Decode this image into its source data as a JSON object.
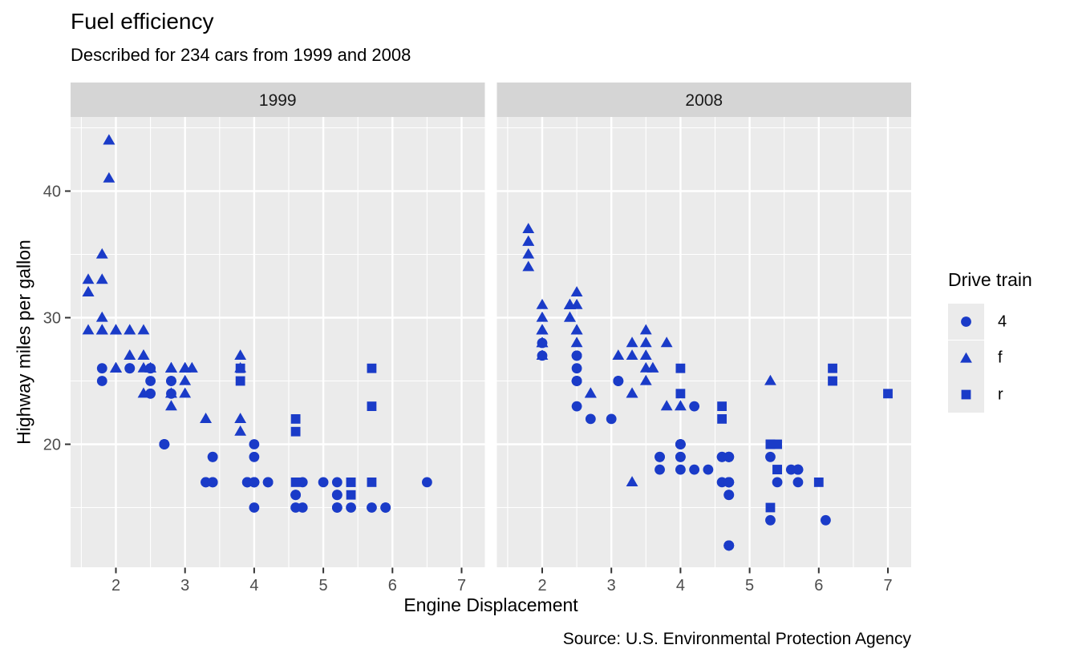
{
  "chart_data": {
    "type": "scatter",
    "title": "Fuel efficiency",
    "subtitle": "Described for 234 cars from 1999 and 2008",
    "xlabel": "Engine Displacement",
    "ylabel": "Highway miles per gallon",
    "caption": "Source: U.S. Environmental Protection Agency",
    "x_ticks": [
      2,
      3,
      4,
      5,
      6,
      7
    ],
    "x_minor": [
      1.5,
      2.5,
      3.5,
      4.5,
      5.5,
      6.5
    ],
    "y_ticks": [
      20,
      30,
      40
    ],
    "y_minor": [
      15,
      25,
      35,
      45
    ],
    "xlim": [
      1.33,
      7.33
    ],
    "ylim": [
      10.4,
      45.8
    ],
    "grid": "on",
    "legend_position": "right",
    "legend": {
      "title": "Drive train",
      "entries": [
        {
          "label": "4",
          "shape": "circle"
        },
        {
          "label": "f",
          "shape": "triangle"
        },
        {
          "label": "r",
          "shape": "square"
        }
      ]
    },
    "colors": {
      "point": "#1A3BC8",
      "panel_bg": "#EBEBEB",
      "strip_bg": "#D5D5D5",
      "grid": "#FFFFFF",
      "tick": "#333333",
      "tick_label": "#4D4D4D",
      "strip_text": "#1A1A1A"
    },
    "facets": [
      {
        "label": "1999",
        "series": [
          {
            "name": "4",
            "shape": "circle",
            "points": [
              [
                1.8,
                26
              ],
              [
                1.8,
                25
              ],
              [
                2.8,
                25
              ],
              [
                2.8,
                25
              ],
              [
                2.8,
                24
              ],
              [
                5.7,
                15
              ],
              [
                6.5,
                17
              ],
              [
                3.9,
                17
              ],
              [
                3.9,
                17
              ],
              [
                5.2,
                17
              ],
              [
                5.2,
                15
              ],
              [
                3.9,
                17
              ],
              [
                5.2,
                16
              ],
              [
                5.9,
                15
              ],
              [
                5.2,
                15
              ],
              [
                5.2,
                16
              ],
              [
                5.9,
                15
              ],
              [
                4.0,
                17
              ],
              [
                4.0,
                19
              ],
              [
                4.0,
                17
              ],
              [
                4.0,
                17
              ],
              [
                4.2,
                17
              ],
              [
                4.2,
                17
              ],
              [
                4.6,
                16
              ],
              [
                4.6,
                16
              ],
              [
                5.4,
                15
              ],
              [
                4.0,
                20
              ],
              [
                4.7,
                17
              ],
              [
                4.0,
                15
              ],
              [
                4.6,
                15
              ],
              [
                4.0,
                17
              ],
              [
                5.0,
                17
              ],
              [
                3.3,
                17
              ],
              [
                3.3,
                17
              ],
              [
                2.5,
                25
              ],
              [
                2.5,
                24
              ],
              [
                2.2,
                26
              ],
              [
                2.2,
                26
              ],
              [
                2.5,
                26
              ],
              [
                2.5,
                26
              ],
              [
                2.7,
                20
              ],
              [
                2.7,
                20
              ],
              [
                3.4,
                19
              ],
              [
                3.4,
                17
              ],
              [
                4.7,
                15
              ],
              [
                2.7,
                20
              ],
              [
                2.7,
                20
              ],
              [
                3.4,
                17
              ],
              [
                3.4,
                19
              ]
            ]
          },
          {
            "name": "f",
            "shape": "triangle",
            "points": [
              [
                1.8,
                29
              ],
              [
                1.8,
                29
              ],
              [
                2.8,
                26
              ],
              [
                2.8,
                26
              ],
              [
                2.4,
                27
              ],
              [
                3.1,
                26
              ],
              [
                2.4,
                24
              ],
              [
                3.0,
                24
              ],
              [
                3.3,
                22
              ],
              [
                3.3,
                22
              ],
              [
                3.8,
                22
              ],
              [
                3.8,
                21
              ],
              [
                1.6,
                33
              ],
              [
                1.6,
                32
              ],
              [
                1.6,
                32
              ],
              [
                1.6,
                29
              ],
              [
                1.6,
                32
              ],
              [
                2.4,
                26
              ],
              [
                2.4,
                27
              ],
              [
                2.5,
                26
              ],
              [
                2.5,
                26
              ],
              [
                2.0,
                26
              ],
              [
                2.0,
                29
              ],
              [
                2.4,
                29
              ],
              [
                2.4,
                27
              ],
              [
                3.0,
                26
              ],
              [
                3.0,
                25
              ],
              [
                3.1,
                26
              ],
              [
                3.8,
                26
              ],
              [
                3.8,
                27
              ],
              [
                2.2,
                29
              ],
              [
                2.2,
                27
              ],
              [
                3.0,
                26
              ],
              [
                3.0,
                26
              ],
              [
                2.2,
                27
              ],
              [
                2.2,
                29
              ],
              [
                3.0,
                26
              ],
              [
                1.8,
                30
              ],
              [
                1.8,
                33
              ],
              [
                1.8,
                35
              ],
              [
                2.0,
                29
              ],
              [
                2.0,
                26
              ],
              [
                2.8,
                24
              ],
              [
                1.9,
                44
              ],
              [
                2.0,
                29
              ],
              [
                2.0,
                26
              ],
              [
                2.8,
                23
              ],
              [
                2.8,
                24
              ],
              [
                1.9,
                44
              ],
              [
                1.9,
                41
              ],
              [
                2.0,
                29
              ],
              [
                2.0,
                26
              ],
              [
                1.8,
                29
              ],
              [
                1.8,
                29
              ],
              [
                2.8,
                26
              ],
              [
                2.8,
                26
              ],
              [
                2.0,
                29
              ]
            ]
          },
          {
            "name": "r",
            "shape": "square",
            "points": [
              [
                5.7,
                17
              ],
              [
                5.7,
                26
              ],
              [
                5.7,
                23
              ],
              [
                4.6,
                17
              ],
              [
                5.4,
                17
              ],
              [
                3.8,
                26
              ],
              [
                3.8,
                25
              ],
              [
                4.6,
                21
              ],
              [
                4.6,
                22
              ],
              [
                5.4,
                17
              ],
              [
                5.4,
                16
              ]
            ]
          }
        ]
      },
      {
        "label": "2008",
        "series": [
          {
            "name": "4",
            "shape": "circle",
            "points": [
              [
                2.0,
                28
              ],
              [
                2.0,
                27
              ],
              [
                3.1,
                25
              ],
              [
                3.1,
                25
              ],
              [
                3.1,
                25
              ],
              [
                4.2,
                23
              ],
              [
                5.3,
                19
              ],
              [
                5.3,
                14
              ],
              [
                3.7,
                19
              ],
              [
                3.7,
                18
              ],
              [
                4.7,
                19
              ],
              [
                4.7,
                19
              ],
              [
                4.7,
                12
              ],
              [
                4.7,
                17
              ],
              [
                4.7,
                12
              ],
              [
                4.7,
                17
              ],
              [
                5.7,
                18
              ],
              [
                4.7,
                16
              ],
              [
                4.7,
                12
              ],
              [
                4.7,
                17
              ],
              [
                4.7,
                17
              ],
              [
                4.7,
                16
              ],
              [
                5.7,
                17
              ],
              [
                4.0,
                19
              ],
              [
                4.6,
                19
              ],
              [
                4.6,
                17
              ],
              [
                5.4,
                17
              ],
              [
                3.0,
                22
              ],
              [
                3.7,
                19
              ],
              [
                4.7,
                12
              ],
              [
                4.7,
                19
              ],
              [
                5.7,
                18
              ],
              [
                6.1,
                14
              ],
              [
                4.2,
                18
              ],
              [
                4.4,
                18
              ],
              [
                4.0,
                19
              ],
              [
                4.6,
                19
              ],
              [
                4.0,
                20
              ],
              [
                5.6,
                18
              ],
              [
                2.5,
                27
              ],
              [
                2.5,
                25
              ],
              [
                2.5,
                26
              ],
              [
                2.5,
                23
              ],
              [
                2.5,
                25
              ],
              [
                2.5,
                27
              ],
              [
                2.5,
                25
              ],
              [
                2.5,
                27
              ],
              [
                4.0,
                20
              ],
              [
                4.7,
                17
              ],
              [
                5.7,
                18
              ],
              [
                2.7,
                22
              ],
              [
                4.0,
                18
              ],
              [
                4.0,
                20
              ],
              [
                4.7,
                19
              ]
            ]
          },
          {
            "name": "f",
            "shape": "triangle",
            "points": [
              [
                2.0,
                31
              ],
              [
                2.0,
                30
              ],
              [
                3.1,
                27
              ],
              [
                2.4,
                30
              ],
              [
                3.5,
                29
              ],
              [
                3.6,
                26
              ],
              [
                3.3,
                24
              ],
              [
                3.3,
                24
              ],
              [
                3.3,
                17
              ],
              [
                3.8,
                23
              ],
              [
                4.0,
                23
              ],
              [
                1.8,
                34
              ],
              [
                1.8,
                36
              ],
              [
                1.8,
                36
              ],
              [
                2.0,
                29
              ],
              [
                2.4,
                30
              ],
              [
                2.4,
                31
              ],
              [
                3.3,
                28
              ],
              [
                2.0,
                28
              ],
              [
                2.0,
                27
              ],
              [
                2.7,
                24
              ],
              [
                2.7,
                24
              ],
              [
                2.7,
                24
              ],
              [
                2.5,
                31
              ],
              [
                2.5,
                32
              ],
              [
                3.5,
                27
              ],
              [
                3.5,
                26
              ],
              [
                3.5,
                25
              ],
              [
                3.8,
                28
              ],
              [
                5.3,
                25
              ],
              [
                2.4,
                31
              ],
              [
                2.4,
                31
              ],
              [
                3.5,
                28
              ],
              [
                2.4,
                31
              ],
              [
                2.4,
                31
              ],
              [
                3.3,
                27
              ],
              [
                1.8,
                37
              ],
              [
                1.8,
                35
              ],
              [
                2.0,
                29
              ],
              [
                2.0,
                29
              ],
              [
                2.0,
                29
              ],
              [
                2.0,
                29
              ],
              [
                2.5,
                29
              ],
              [
                2.5,
                29
              ],
              [
                2.5,
                28
              ],
              [
                2.5,
                29
              ],
              [
                2.0,
                28
              ],
              [
                2.0,
                29
              ],
              [
                3.6,
                26
              ]
            ]
          },
          {
            "name": "r",
            "shape": "square",
            "points": [
              [
                5.3,
                20
              ],
              [
                5.3,
                15
              ],
              [
                5.3,
                20
              ],
              [
                6.0,
                17
              ],
              [
                6.2,
                26
              ],
              [
                6.2,
                25
              ],
              [
                7.0,
                24
              ],
              [
                5.4,
                18
              ],
              [
                4.0,
                26
              ],
              [
                4.0,
                24
              ],
              [
                4.6,
                23
              ],
              [
                4.6,
                22
              ],
              [
                5.4,
                20
              ],
              [
                5.4,
                18
              ]
            ]
          }
        ]
      }
    ]
  }
}
